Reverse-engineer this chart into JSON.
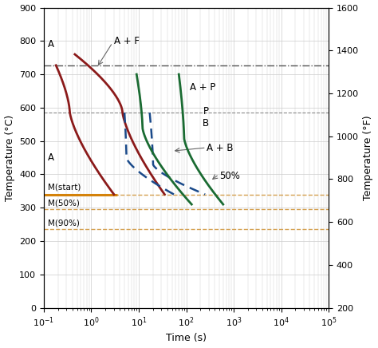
{
  "xlabel": "Time (s)",
  "ylabel_left": "Temperature (°C)",
  "ylabel_right": "Temperature (°F)",
  "xlim": [
    0.1,
    100000
  ],
  "ylim_c": [
    0,
    900
  ],
  "ylim_f": [
    200,
    1600
  ],
  "yticks_c": [
    0,
    100,
    200,
    300,
    400,
    500,
    600,
    700,
    800,
    900
  ],
  "yticks_f": [
    200,
    400,
    600,
    800,
    1000,
    1200,
    1400,
    1600
  ],
  "eutectoid_temp": 727,
  "bainite_boundary_temp": 585,
  "M_start": 340,
  "M_50": 295,
  "M_90": 235,
  "background_color": "#ffffff",
  "grid_color": "#cccccc",
  "red_color": "#8b1a1a",
  "blue_color": "#1a4a8a",
  "green_color": "#1a6b32",
  "orange_solid": "#d4820a",
  "orange_dashed": "#d4a050",
  "grey_dashdot": "#555555",
  "grey_dashed": "#888888",
  "label_A_upper": "A",
  "label_A_lower": "A",
  "label_AF": "A + F",
  "label_AP": "A + P",
  "label_AB": "A + B",
  "label_PB": "P\nB",
  "label_50pct": "50%",
  "label_Mstart": "M(start)",
  "label_M50": "M(50%)",
  "label_M90": "M(90%)"
}
